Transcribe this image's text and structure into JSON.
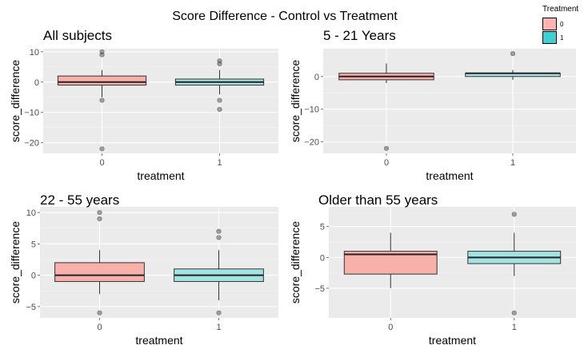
{
  "title": "Score Difference - Control vs Treatment",
  "legend": {
    "title": "Treatment",
    "placement": "top-right",
    "entries": [
      {
        "label": "0",
        "color": "#F8766D"
      },
      {
        "label": "1",
        "color": "#00BFC4"
      }
    ]
  },
  "chart_data": [
    {
      "type": "box",
      "title": "All subjects",
      "xlabel": "treatment",
      "ylabel": "score_difference",
      "ylim": [
        -23.5,
        11
      ],
      "yticks": [
        10,
        0,
        -10,
        -20
      ],
      "ytick_labels": [
        "10",
        "0",
        "−10",
        "−20"
      ],
      "categories": [
        "0",
        "1"
      ],
      "boxes": [
        {
          "category": "0",
          "q1": -1,
          "median": 0,
          "q3": 2,
          "whisker_low": -5,
          "whisker_high": 4,
          "outliers": [
            10,
            9,
            -6,
            -22
          ]
        },
        {
          "category": "1",
          "q1": -1,
          "median": 0,
          "q3": 1,
          "whisker_low": -4,
          "whisker_high": 4,
          "outliers": [
            7,
            6,
            -6,
            -9
          ]
        }
      ]
    },
    {
      "type": "box",
      "title": "5 - 21 Years",
      "xlabel": "treatment",
      "ylabel": "score_difference",
      "ylim": [
        -23.5,
        8.5
      ],
      "yticks": [
        0,
        -10,
        -20
      ],
      "ytick_labels": [
        "0",
        "−10",
        "−20"
      ],
      "categories": [
        "0",
        "1"
      ],
      "boxes": [
        {
          "category": "0",
          "q1": -1,
          "median": 0,
          "q3": 1,
          "whisker_low": -2,
          "whisker_high": 4,
          "outliers": [
            -22
          ]
        },
        {
          "category": "1",
          "q1": 0,
          "median": 1,
          "q3": 1,
          "whisker_low": -1,
          "whisker_high": 2,
          "outliers": [
            7
          ]
        }
      ]
    },
    {
      "type": "box",
      "title": "22 - 55 years",
      "xlabel": "treatment",
      "ylabel": "score_difference",
      "ylim": [
        -6.8,
        10.9
      ],
      "yticks": [
        10,
        5,
        0,
        -5
      ],
      "ytick_labels": [
        "10",
        "5",
        "0",
        "−5"
      ],
      "categories": [
        "0",
        "1"
      ],
      "boxes": [
        {
          "category": "0",
          "q1": -1,
          "median": 0,
          "q3": 2,
          "whisker_low": -3,
          "whisker_high": 4,
          "outliers": [
            10,
            9,
            -6
          ]
        },
        {
          "category": "1",
          "q1": -1,
          "median": 0,
          "q3": 1,
          "whisker_low": -4,
          "whisker_high": 4,
          "outliers": [
            7,
            6,
            -6
          ]
        }
      ]
    },
    {
      "type": "box",
      "title": "Older than 55 years",
      "xlabel": "treatment",
      "ylabel": "score_difference",
      "ylim": [
        -9.8,
        8.2
      ],
      "yticks": [
        5,
        0,
        -5
      ],
      "ytick_labels": [
        "5",
        "0",
        "−5"
      ],
      "categories": [
        "0",
        "1"
      ],
      "boxes": [
        {
          "category": "0",
          "q1": -2.7,
          "median": 0.5,
          "q3": 1,
          "whisker_low": -5,
          "whisker_high": 4,
          "outliers": []
        },
        {
          "category": "1",
          "q1": -1,
          "median": 0,
          "q3": 1,
          "whisker_low": -3,
          "whisker_high": 4,
          "outliers": [
            7,
            -9
          ]
        }
      ]
    }
  ]
}
